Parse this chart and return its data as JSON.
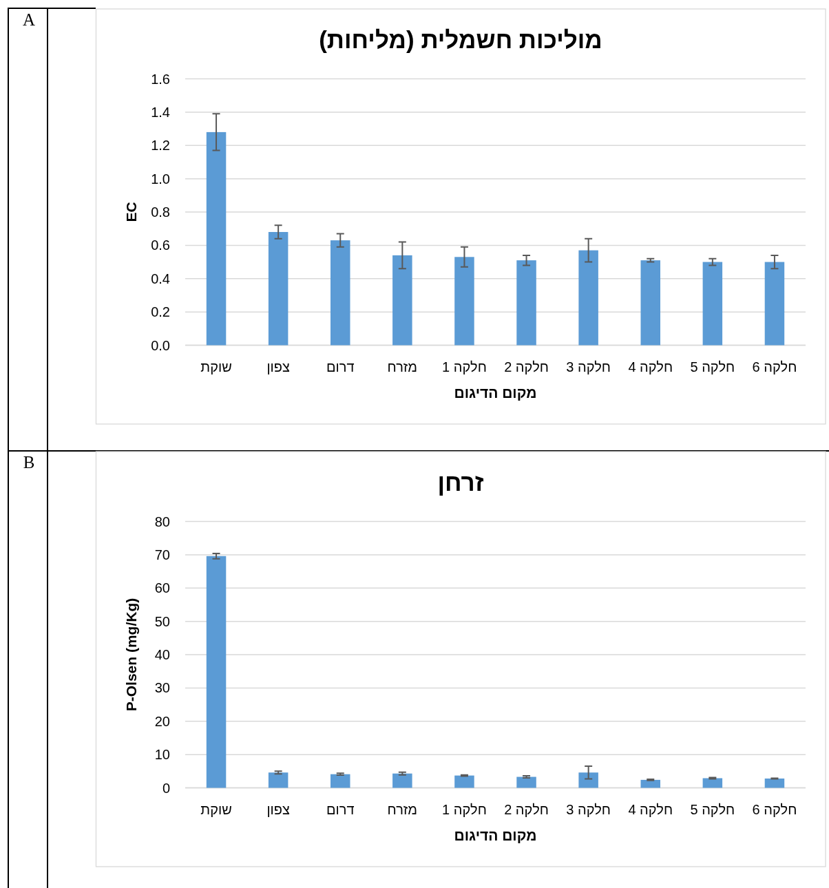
{
  "chart_data": [
    {
      "type": "bar",
      "title": "מוליכות חשמלית (מליחות)",
      "xlabel": "מקום הדיגום",
      "ylabel": "EC",
      "annotations": [
        "A"
      ],
      "categories": [
        "שוקת",
        "צפון",
        "דרום",
        "מזרח",
        "חלקה 1",
        "חלקה 2",
        "חלקה 3",
        "חלקה 4",
        "חלקה 5",
        "חלקה 6"
      ],
      "values": [
        1.28,
        0.68,
        0.63,
        0.54,
        0.53,
        0.51,
        0.57,
        0.51,
        0.5,
        0.5
      ],
      "errors": [
        0.11,
        0.04,
        0.04,
        0.08,
        0.06,
        0.03,
        0.07,
        0.01,
        0.02,
        0.04
      ],
      "color": "#5b9bd5",
      "ylim": [
        0,
        1.6
      ],
      "yticks": [
        {
          "value": 0,
          "label": "0.0"
        },
        0.2,
        0.4,
        0.6,
        0.8,
        {
          "value": 1,
          "label": "1.0"
        },
        1.2,
        1.4,
        1.6
      ],
      "grid": "y"
    },
    {
      "type": "bar",
      "title": "זרחן",
      "xlabel": "מקום הדיגום",
      "ylabel": "P-Olsen (mg/Kg)",
      "annotations": [
        "B"
      ],
      "categories": [
        "שוקת",
        "צפון",
        "דרום",
        "מזרח",
        "חלקה 1",
        "חלקה 2",
        "חלקה 3",
        "חלקה 4",
        "חלקה 5",
        "חלקה 6"
      ],
      "values": [
        69.6,
        4.6,
        4.1,
        4.3,
        3.7,
        3.3,
        4.6,
        2.4,
        2.9,
        2.8
      ],
      "errors": [
        0.8,
        0.4,
        0.3,
        0.4,
        0.2,
        0.3,
        1.9,
        0.2,
        0.2,
        0.1
      ],
      "color": "#5b9bd5",
      "ylim": [
        0,
        80
      ],
      "yticks": [
        0,
        10,
        20,
        30,
        40,
        50,
        60,
        70,
        80
      ],
      "grid": "y"
    }
  ]
}
